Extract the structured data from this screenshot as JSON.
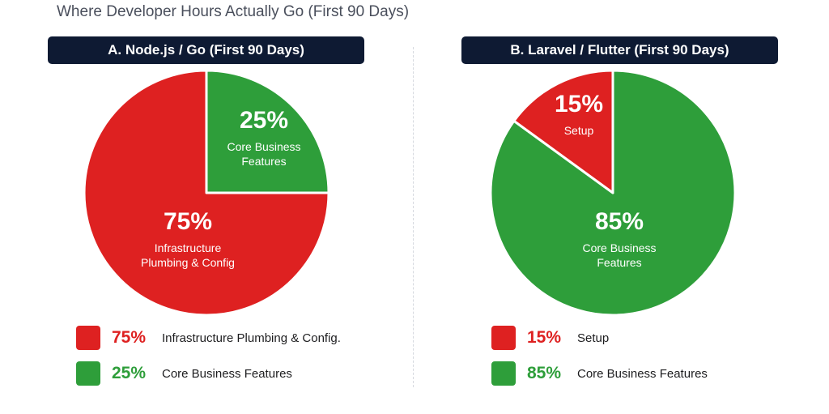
{
  "title": "Where Developer Hours Actually Go (First 90 Days)",
  "colors": {
    "red": "#de2121",
    "green": "#2e9e3a"
  },
  "chart_data": [
    {
      "type": "pie",
      "title": "A. Node.js / Go (First 90 Days)",
      "slices": [
        {
          "value": 25,
          "pct_label": "25%",
          "label_lines": [
            "Core Business",
            "Features"
          ],
          "color": "#2e9e3a"
        },
        {
          "value": 75,
          "pct_label": "75%",
          "label_lines": [
            "Infrastructure",
            "Plumbing & Config"
          ],
          "color": "#de2121"
        }
      ],
      "legend": [
        {
          "pct": "75%",
          "label": "Infrastructure Plumbing & Config.",
          "color": "#de2121"
        },
        {
          "pct": "25%",
          "label": "Core Business Features",
          "color": "#2e9e3a"
        }
      ]
    },
    {
      "type": "pie",
      "title": "B. Laravel / Flutter (First 90 Days)",
      "slices": [
        {
          "value": 85,
          "pct_label": "85%",
          "label_lines": [
            "Core Business",
            "Features"
          ],
          "color": "#2e9e3a"
        },
        {
          "value": 15,
          "pct_label": "15%",
          "label_lines": [
            "Setup"
          ],
          "color": "#de2121"
        }
      ],
      "legend": [
        {
          "pct": "15%",
          "label": "Setup",
          "color": "#de2121"
        },
        {
          "pct": "85%",
          "label": "Core Business Features",
          "color": "#2e9e3a"
        }
      ]
    }
  ]
}
